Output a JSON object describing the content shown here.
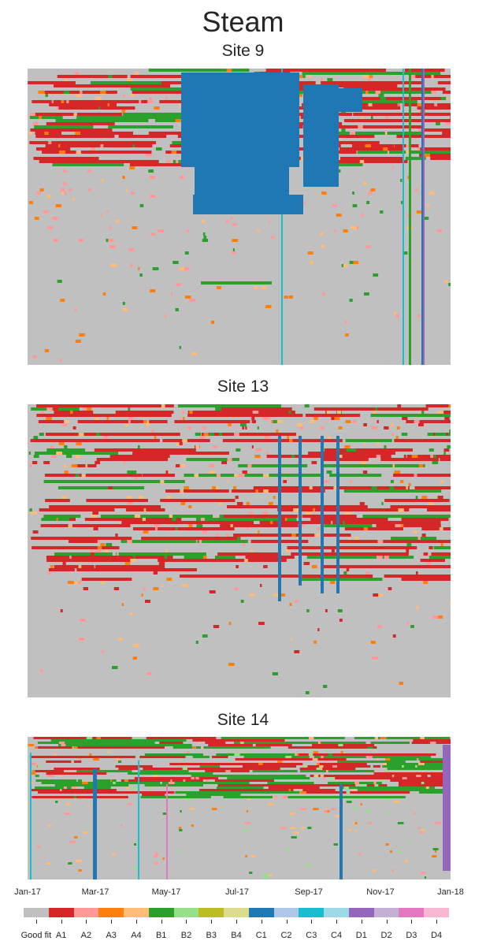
{
  "title": "Steam",
  "panels": [
    {
      "title": "Site 9"
    },
    {
      "title": "Site 13"
    },
    {
      "title": "Site 14"
    }
  ],
  "chart_data": {
    "type": "heatmap",
    "title": "Steam",
    "x_tick_labels": [
      "Jan-17",
      "Mar-17",
      "May-17",
      "Jul-17",
      "Sep-17",
      "Nov-17",
      "Jan-18"
    ],
    "x_range": [
      "Jan-17",
      "Jan-18"
    ],
    "panels": [
      "Site 9",
      "Site 13",
      "Site 14"
    ],
    "legend": {
      "placement": "bottom",
      "categories": [
        {
          "label": "Good fit",
          "color": "#c0c0c0"
        },
        {
          "label": "A1",
          "color": "#d62728"
        },
        {
          "label": "A2",
          "color": "#ff9896"
        },
        {
          "label": "A3",
          "color": "#ff7f0e"
        },
        {
          "label": "A4",
          "color": "#ffbb78"
        },
        {
          "label": "B1",
          "color": "#2ca02c"
        },
        {
          "label": "B2",
          "color": "#98df8a"
        },
        {
          "label": "B3",
          "color": "#bcbd22"
        },
        {
          "label": "B4",
          "color": "#dbdb8d"
        },
        {
          "label": "C1",
          "color": "#1f77b4"
        },
        {
          "label": "C2",
          "color": "#aec7e8"
        },
        {
          "label": "C3",
          "color": "#17becf"
        },
        {
          "label": "C4",
          "color": "#9edae5"
        },
        {
          "label": "D1",
          "color": "#9467bd"
        },
        {
          "label": "D2",
          "color": "#c5b0d5"
        },
        {
          "label": "D3",
          "color": "#e377c2"
        },
        {
          "label": "D4",
          "color": "#f7b6d2"
        }
      ]
    }
  }
}
